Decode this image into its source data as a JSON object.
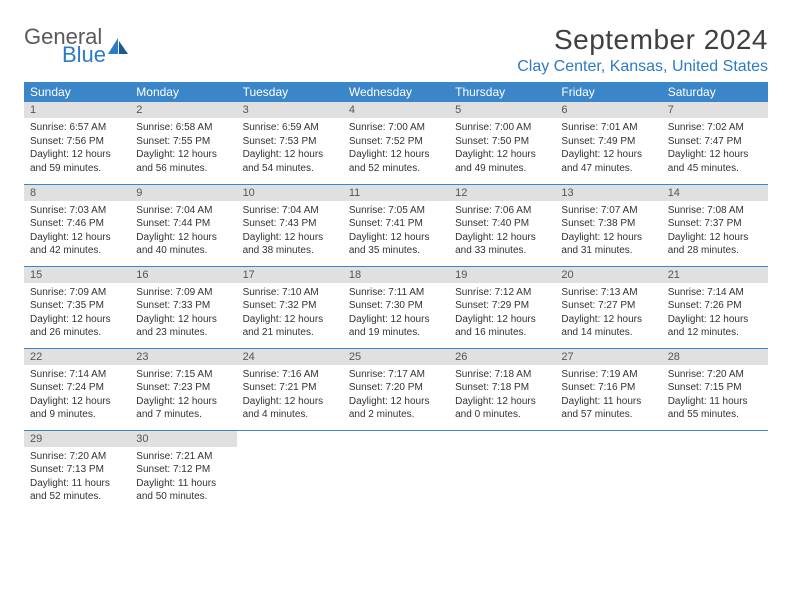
{
  "logo": {
    "general": "General",
    "blue": "Blue"
  },
  "title": "September 2024",
  "location": "Clay Center, Kansas, United States",
  "colors": {
    "header_bg": "#3a86c8",
    "header_text": "#ffffff",
    "daynum_bg": "#e0e0e0",
    "brand_blue": "#2b7cc4",
    "rule": "#3a86c8"
  },
  "daysOfWeek": [
    "Sunday",
    "Monday",
    "Tuesday",
    "Wednesday",
    "Thursday",
    "Friday",
    "Saturday"
  ],
  "weeks": [
    [
      {
        "n": "1",
        "sr": "6:57 AM",
        "ss": "7:56 PM",
        "dl": "12 hours and 59 minutes."
      },
      {
        "n": "2",
        "sr": "6:58 AM",
        "ss": "7:55 PM",
        "dl": "12 hours and 56 minutes."
      },
      {
        "n": "3",
        "sr": "6:59 AM",
        "ss": "7:53 PM",
        "dl": "12 hours and 54 minutes."
      },
      {
        "n": "4",
        "sr": "7:00 AM",
        "ss": "7:52 PM",
        "dl": "12 hours and 52 minutes."
      },
      {
        "n": "5",
        "sr": "7:00 AM",
        "ss": "7:50 PM",
        "dl": "12 hours and 49 minutes."
      },
      {
        "n": "6",
        "sr": "7:01 AM",
        "ss": "7:49 PM",
        "dl": "12 hours and 47 minutes."
      },
      {
        "n": "7",
        "sr": "7:02 AM",
        "ss": "7:47 PM",
        "dl": "12 hours and 45 minutes."
      }
    ],
    [
      {
        "n": "8",
        "sr": "7:03 AM",
        "ss": "7:46 PM",
        "dl": "12 hours and 42 minutes."
      },
      {
        "n": "9",
        "sr": "7:04 AM",
        "ss": "7:44 PM",
        "dl": "12 hours and 40 minutes."
      },
      {
        "n": "10",
        "sr": "7:04 AM",
        "ss": "7:43 PM",
        "dl": "12 hours and 38 minutes."
      },
      {
        "n": "11",
        "sr": "7:05 AM",
        "ss": "7:41 PM",
        "dl": "12 hours and 35 minutes."
      },
      {
        "n": "12",
        "sr": "7:06 AM",
        "ss": "7:40 PM",
        "dl": "12 hours and 33 minutes."
      },
      {
        "n": "13",
        "sr": "7:07 AM",
        "ss": "7:38 PM",
        "dl": "12 hours and 31 minutes."
      },
      {
        "n": "14",
        "sr": "7:08 AM",
        "ss": "7:37 PM",
        "dl": "12 hours and 28 minutes."
      }
    ],
    [
      {
        "n": "15",
        "sr": "7:09 AM",
        "ss": "7:35 PM",
        "dl": "12 hours and 26 minutes."
      },
      {
        "n": "16",
        "sr": "7:09 AM",
        "ss": "7:33 PM",
        "dl": "12 hours and 23 minutes."
      },
      {
        "n": "17",
        "sr": "7:10 AM",
        "ss": "7:32 PM",
        "dl": "12 hours and 21 minutes."
      },
      {
        "n": "18",
        "sr": "7:11 AM",
        "ss": "7:30 PM",
        "dl": "12 hours and 19 minutes."
      },
      {
        "n": "19",
        "sr": "7:12 AM",
        "ss": "7:29 PM",
        "dl": "12 hours and 16 minutes."
      },
      {
        "n": "20",
        "sr": "7:13 AM",
        "ss": "7:27 PM",
        "dl": "12 hours and 14 minutes."
      },
      {
        "n": "21",
        "sr": "7:14 AM",
        "ss": "7:26 PM",
        "dl": "12 hours and 12 minutes."
      }
    ],
    [
      {
        "n": "22",
        "sr": "7:14 AM",
        "ss": "7:24 PM",
        "dl": "12 hours and 9 minutes."
      },
      {
        "n": "23",
        "sr": "7:15 AM",
        "ss": "7:23 PM",
        "dl": "12 hours and 7 minutes."
      },
      {
        "n": "24",
        "sr": "7:16 AM",
        "ss": "7:21 PM",
        "dl": "12 hours and 4 minutes."
      },
      {
        "n": "25",
        "sr": "7:17 AM",
        "ss": "7:20 PM",
        "dl": "12 hours and 2 minutes."
      },
      {
        "n": "26",
        "sr": "7:18 AM",
        "ss": "7:18 PM",
        "dl": "12 hours and 0 minutes."
      },
      {
        "n": "27",
        "sr": "7:19 AM",
        "ss": "7:16 PM",
        "dl": "11 hours and 57 minutes."
      },
      {
        "n": "28",
        "sr": "7:20 AM",
        "ss": "7:15 PM",
        "dl": "11 hours and 55 minutes."
      }
    ],
    [
      {
        "n": "29",
        "sr": "7:20 AM",
        "ss": "7:13 PM",
        "dl": "11 hours and 52 minutes."
      },
      {
        "n": "30",
        "sr": "7:21 AM",
        "ss": "7:12 PM",
        "dl": "11 hours and 50 minutes."
      },
      null,
      null,
      null,
      null,
      null
    ]
  ],
  "labels": {
    "sunrise": "Sunrise:",
    "sunset": "Sunset:",
    "daylight": "Daylight:"
  }
}
